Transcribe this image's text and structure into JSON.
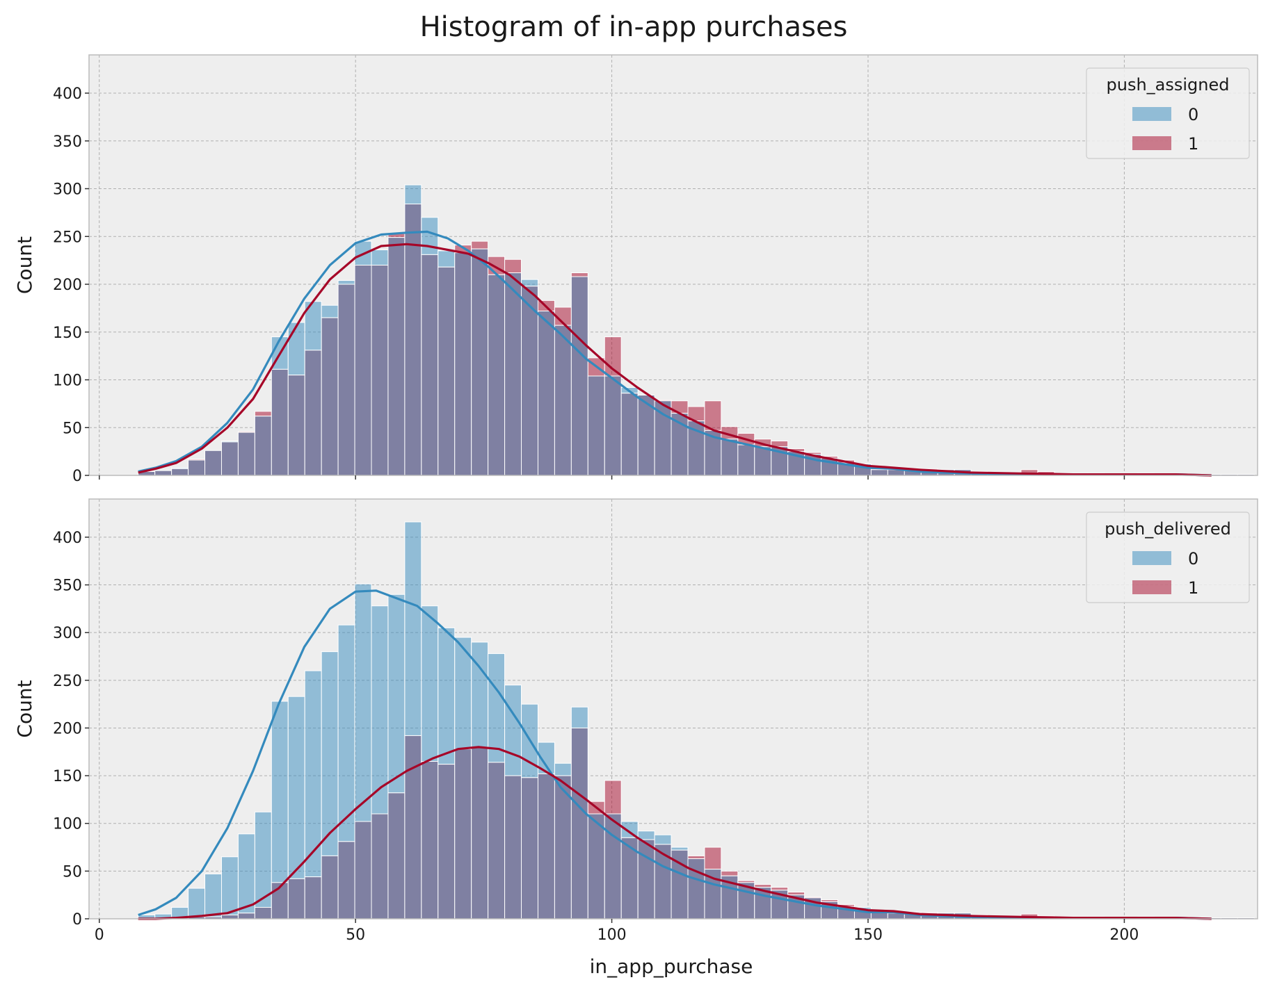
{
  "chart_data": {
    "type": "bar",
    "title": "Histogram of in-app purchases",
    "xlabel": "in_app_purchase",
    "xlim": [
      -2,
      226
    ],
    "xticks": [
      0,
      50,
      100,
      150,
      200
    ],
    "bin_start": 7.6,
    "bin_width": 3.25,
    "colors": {
      "series_0": "#348abd",
      "series_1": "#a60628",
      "overlap": "#7f80a2",
      "background": "#eeeeee",
      "grid": "#b0b0b0"
    },
    "panels": [
      {
        "ylabel": "Count",
        "ylim": [
          0,
          440
        ],
        "yticks": [
          0,
          50,
          100,
          150,
          200,
          250,
          300,
          350,
          400
        ],
        "legend_title": "push_assigned",
        "legend_position": "upper right",
        "series": [
          {
            "name": "0",
            "values": [
              4,
              5,
              8,
              16,
              26,
              36,
              45,
              62,
              145,
              160,
              182,
              178,
              204,
              245,
              236,
              249,
              304,
              270,
              235,
              233,
              237,
              210,
              212,
              205,
              172,
              157,
              208,
              104,
              104,
              92,
              84,
              78,
              65,
              57,
              47,
              38,
              32,
              30,
              30,
              25,
              22,
              18,
              13,
              12,
              6,
              6,
              6,
              6,
              6,
              6,
              4,
              2,
              2,
              2,
              2,
              2,
              2,
              1,
              1,
              1,
              1,
              1,
              1,
              1,
              1,
              1,
              1
            ]
          },
          {
            "name": "1",
            "values": [
              4,
              5,
              7,
              17,
              26,
              35,
              46,
              67,
              111,
              105,
              131,
              165,
              200,
              220,
              220,
              253,
              284,
              231,
              218,
              241,
              245,
              229,
              226,
              198,
              183,
              176,
              212,
              123,
              145,
              86,
              84,
              79,
              78,
              72,
              78,
              51,
              44,
              38,
              36,
              28,
              24,
              20,
              16,
              10,
              8,
              8,
              7,
              7,
              6,
              6,
              3,
              2,
              2,
              6,
              4,
              2,
              2,
              2,
              1,
              1,
              2,
              1,
              1,
              1,
              1,
              1,
              1
            ]
          }
        ],
        "kde": [
          {
            "name": "0",
            "x": [
              7.6,
              11,
              15,
              20,
              25,
              30,
              35,
              40,
              45,
              50,
              55,
              60,
              64,
              68,
              72,
              76,
              80,
              85,
              90,
              95,
              100,
              105,
              110,
              115,
              120,
              130,
              140,
              150,
              155,
              160,
              170,
              180,
              190,
              200,
              210,
              217
            ],
            "y": [
              4,
              8,
              15,
              30,
              55,
              90,
              140,
              185,
              220,
              243,
              252,
              254,
              255,
              248,
              235,
              218,
              198,
              172,
              148,
              122,
              102,
              82,
              64,
              50,
              40,
              28,
              16,
              8,
              7,
              4,
              2,
              1,
              1,
              1,
              1,
              0
            ]
          },
          {
            "name": "1",
            "x": [
              7.6,
              11,
              15,
              20,
              25,
              30,
              35,
              40,
              45,
              50,
              55,
              60,
              64,
              68,
              72,
              76,
              80,
              85,
              90,
              95,
              100,
              105,
              110,
              115,
              120,
              130,
              140,
              150,
              155,
              160,
              170,
              180,
              190,
              200,
              210,
              217
            ],
            "y": [
              3,
              7,
              13,
              28,
              50,
              80,
              125,
              170,
              205,
              228,
              240,
              242,
              240,
              236,
              232,
              222,
              210,
              188,
              162,
              136,
              112,
              92,
              74,
              60,
              47,
              32,
              20,
              10,
              8,
              6,
              3,
              2,
              1,
              1,
              1,
              0
            ]
          }
        ]
      },
      {
        "ylabel": "Count",
        "ylim": [
          0,
          440
        ],
        "yticks": [
          0,
          50,
          100,
          150,
          200,
          250,
          300,
          350,
          400
        ],
        "legend_title": "push_delivered",
        "legend_position": "upper right",
        "series": [
          {
            "name": "0",
            "values": [
              4,
              5,
              12,
              32,
              47,
              65,
              89,
              112,
              228,
              233,
              260,
              280,
              308,
              351,
              328,
              340,
              416,
              328,
              305,
              295,
              290,
              278,
              245,
              225,
              185,
              163,
              222,
              110,
              110,
              102,
              92,
              88,
              75,
              63,
              52,
              45,
              38,
              33,
              30,
              25,
              22,
              18,
              13,
              12,
              7,
              6,
              6,
              6,
              6,
              6,
              4,
              2,
              2,
              2,
              2,
              2,
              2,
              1,
              1,
              1,
              1,
              1,
              1,
              1,
              1,
              1,
              1
            ]
          },
          {
            "name": "1",
            "values": [
              0,
              0,
              1,
              2,
              2,
              4,
              6,
              12,
              38,
              42,
              44,
              66,
              81,
              102,
              110,
              132,
              192,
              165,
              162,
              178,
              180,
              164,
              150,
              148,
              152,
              150,
              200,
              123,
              145,
              85,
              83,
              78,
              72,
              66,
              75,
              50,
              40,
              36,
              33,
              28,
              23,
              20,
              15,
              10,
              8,
              7,
              7,
              7,
              6,
              6,
              3,
              2,
              2,
              5,
              3,
              2,
              2,
              2,
              1,
              1,
              2,
              1,
              1,
              1,
              1,
              1,
              1
            ]
          }
        ],
        "kde": [
          {
            "name": "0",
            "x": [
              7.6,
              11,
              15,
              20,
              25,
              30,
              35,
              40,
              45,
              50,
              54,
              58,
              62,
              66,
              70,
              74,
              78,
              82,
              86,
              90,
              95,
              100,
              105,
              110,
              115,
              120,
              130,
              140,
              150,
              155,
              160,
              170,
              180,
              190,
              200,
              210,
              217
            ],
            "y": [
              4,
              10,
              22,
              50,
              95,
              155,
              225,
              285,
              325,
              343,
              344,
              336,
              328,
              310,
              290,
              265,
              237,
              205,
              170,
              138,
              110,
              88,
              70,
              55,
              44,
              36,
              24,
              14,
              7,
              7,
              4,
              2,
              1,
              1,
              1,
              1,
              0
            ]
          },
          {
            "name": "1",
            "x": [
              7.6,
              11,
              15,
              20,
              25,
              30,
              35,
              40,
              45,
              50,
              55,
              60,
              65,
              70,
              74,
              78,
              82,
              86,
              90,
              95,
              100,
              105,
              110,
              115,
              120,
              130,
              140,
              150,
              155,
              160,
              170,
              180,
              190,
              200,
              210,
              217
            ],
            "y": [
              0,
              0,
              1,
              3,
              6,
              15,
              32,
              60,
              90,
              115,
              138,
              155,
              168,
              178,
              180,
              178,
              170,
              158,
              145,
              125,
              104,
              85,
              68,
              53,
              42,
              29,
              17,
              9,
              8,
              5,
              3,
              2,
              1,
              1,
              1,
              0
            ]
          }
        ]
      }
    ]
  }
}
